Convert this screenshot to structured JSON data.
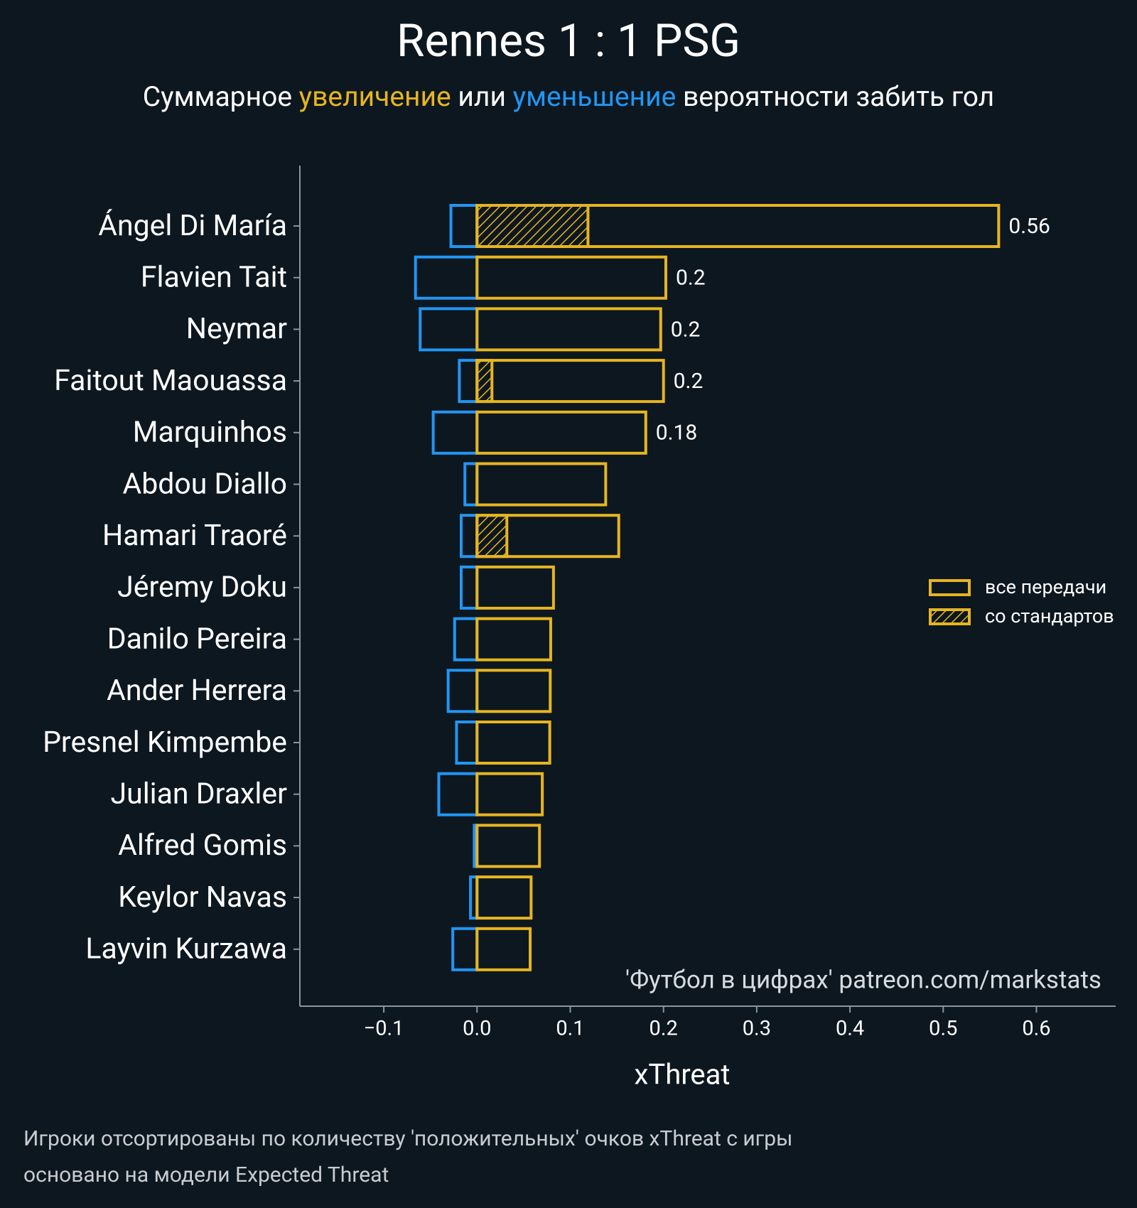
{
  "chart_data": {
    "type": "bar",
    "orientation": "horizontal",
    "title": "Rennes 1 : 1 PSG",
    "subtitle": [
      {
        "text": "Суммарное ",
        "color": "#ffffff"
      },
      {
        "text": "увеличение",
        "color": "#e6b520"
      },
      {
        "text": " или ",
        "color": "#ffffff"
      },
      {
        "text": "уменьшение",
        "color": "#2196f3"
      },
      {
        "text": " вероятности забить гол",
        "color": "#ffffff"
      }
    ],
    "categories": [
      "Ángel Di María",
      "Flavien Tait",
      "Neymar",
      "Faitout Maouassa",
      "Marquinhos",
      "Abdou Diallo",
      "Hamari Traoré",
      "Jéremy Doku",
      "Danilo Pereira",
      "Ander Herrera",
      "Presnel Kimpembe",
      "Julian Draxler",
      "Alfred Gomis",
      "Keylor Navas",
      "Layvin Kurzawa"
    ],
    "series": [
      {
        "name": "все передачи",
        "color": "#e6b520",
        "values": [
          0.5595,
          0.2025,
          0.197,
          0.2,
          0.181,
          0.138,
          0.152,
          0.082,
          0.079,
          0.0785,
          0.078,
          0.07,
          0.067,
          0.058,
          0.057
        ],
        "value_labels": [
          "0.56",
          "0.2",
          "0.2",
          "0.2",
          "0.18",
          null,
          null,
          null,
          null,
          null,
          null,
          null,
          null,
          null,
          null
        ]
      },
      {
        "name": "со стандартов",
        "color": "#e6b520",
        "hatch": true,
        "values": [
          0.119,
          0,
          0,
          0.016,
          0,
          0,
          0.032,
          0,
          0,
          0,
          0,
          0,
          0,
          0,
          0
        ]
      },
      {
        "color": "#2196f3",
        "values": [
          -0.028,
          -0.066,
          -0.061,
          -0.019,
          -0.047,
          -0.013,
          -0.017,
          -0.017,
          -0.024,
          -0.031,
          -0.022,
          -0.041,
          -0.003,
          -0.007,
          -0.026
        ]
      }
    ],
    "xlabel": "xThreat",
    "xlim": [
      -0.19,
      0.685
    ],
    "xticks": [
      {
        "value": -0.1,
        "label": "−0.1"
      },
      {
        "value": 0,
        "label": "0.0"
      },
      0.1,
      0.2,
      0.3,
      0.4,
      0.5,
      0.6
    ],
    "annotation": "'Футбол в цифрах' patreon.com/markstats",
    "footnotes": [
      "Игроки отсортированы по количеству 'положительных' очков xThreat с игры",
      "основано на модели Expected Threat"
    ],
    "legend": "right",
    "grid": false
  }
}
